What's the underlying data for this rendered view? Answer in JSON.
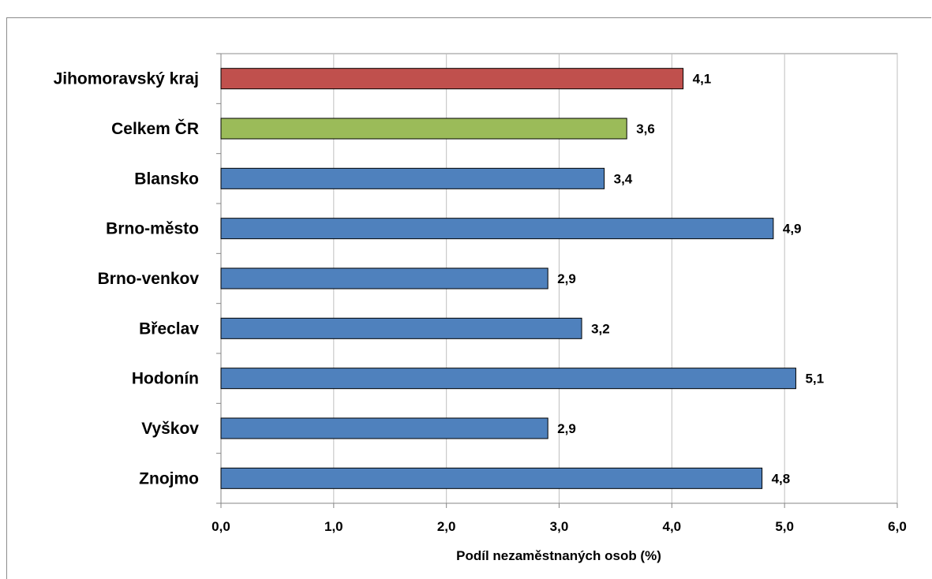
{
  "chart_data": {
    "type": "bar",
    "orientation": "horizontal",
    "categories": [
      "Jihomoravský kraj",
      "Celkem ČR",
      "Blansko",
      "Brno-město",
      "Brno-venkov",
      "Břeclav",
      "Hodonín",
      "Vyškov",
      "Znojmo"
    ],
    "values": [
      4.1,
      3.6,
      3.4,
      4.9,
      2.9,
      3.2,
      5.1,
      2.9,
      4.8
    ],
    "value_labels": [
      "4,1",
      "3,6",
      "3,4",
      "4,9",
      "2,9",
      "3,2",
      "5,1",
      "2,9",
      "4,8"
    ],
    "bar_colors": [
      "#c0504d",
      "#9bbb59",
      "#4f81bd",
      "#4f81bd",
      "#4f81bd",
      "#4f81bd",
      "#4f81bd",
      "#4f81bd",
      "#4f81bd"
    ],
    "xlim": [
      0,
      6
    ],
    "x_ticks": [
      0,
      1,
      2,
      3,
      4,
      5,
      6
    ],
    "x_tick_labels": [
      "0,0",
      "1,0",
      "2,0",
      "3,0",
      "4,0",
      "5,0",
      "6,0"
    ],
    "xlabel": "Podíl nezaměstnaných osob (%)",
    "ylabel": "",
    "grid": "vertical",
    "legend": "none"
  }
}
